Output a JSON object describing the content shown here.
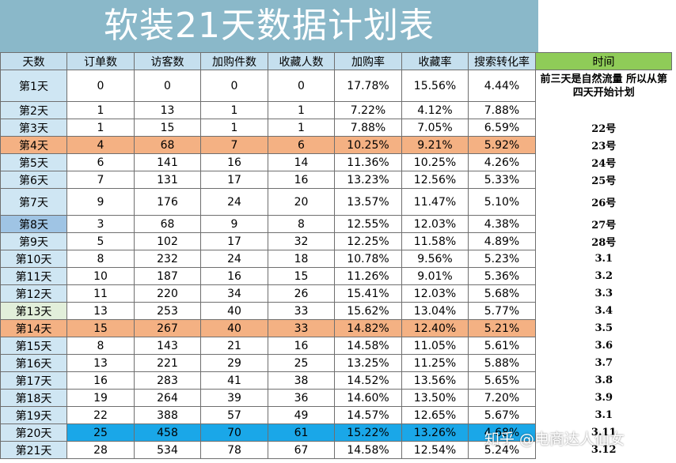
{
  "title": "软装21天数据计划表",
  "headers": [
    "天数",
    "订单数",
    "访客数",
    "加购件数",
    "收藏人数",
    "加购率",
    "收藏率",
    "搜索转化率",
    "时间"
  ],
  "rows": [
    {
      "day": "第1天",
      "orders": "0",
      "visitors": "0",
      "cart": "0",
      "fav": "0",
      "cart_rate": "17.78%",
      "fav_rate": "15.56%",
      "conv": "4.44%",
      "time": "前三天是自然流量 所以从第四天开始计划"
    },
    {
      "day": "第2天",
      "orders": "1",
      "visitors": "13",
      "cart": "1",
      "fav": "1",
      "cart_rate": "7.22%",
      "fav_rate": "4.12%",
      "conv": "7.88%",
      "time": ""
    },
    {
      "day": "第3天",
      "orders": "1",
      "visitors": "15",
      "cart": "1",
      "fav": "1",
      "cart_rate": "7.88%",
      "fav_rate": "7.05%",
      "conv": "6.59%",
      "time": "22号"
    },
    {
      "day": "第4天",
      "orders": "4",
      "visitors": "68",
      "cart": "7",
      "fav": "6",
      "cart_rate": "10.25%",
      "fav_rate": "9.21%",
      "conv": "5.92%",
      "time": "23号"
    },
    {
      "day": "第5天",
      "orders": "6",
      "visitors": "141",
      "cart": "16",
      "fav": "14",
      "cart_rate": "11.36%",
      "fav_rate": "10.25%",
      "conv": "4.26%",
      "time": "24号"
    },
    {
      "day": "第6天",
      "orders": "7",
      "visitors": "131",
      "cart": "17",
      "fav": "16",
      "cart_rate": "13.23%",
      "fav_rate": "12.56%",
      "conv": "5.33%",
      "time": "25号"
    },
    {
      "day": "第7天",
      "orders": "9",
      "visitors": "176",
      "cart": "24",
      "fav": "20",
      "cart_rate": "13.57%",
      "fav_rate": "11.47%",
      "conv": "5.10%",
      "time": "26号"
    },
    {
      "day": "第8天",
      "orders": "3",
      "visitors": "68",
      "cart": "9",
      "fav": "8",
      "cart_rate": "12.55%",
      "fav_rate": "12.03%",
      "conv": "4.38%",
      "time": "27号"
    },
    {
      "day": "第9天",
      "orders": "5",
      "visitors": "102",
      "cart": "17",
      "fav": "32",
      "cart_rate": "12.25%",
      "fav_rate": "11.58%",
      "conv": "4.89%",
      "time": "28号"
    },
    {
      "day": "第10天",
      "orders": "8",
      "visitors": "232",
      "cart": "24",
      "fav": "18",
      "cart_rate": "10.78%",
      "fav_rate": "9.56%",
      "conv": "5.23%",
      "time": "3.1"
    },
    {
      "day": "第11天",
      "orders": "10",
      "visitors": "187",
      "cart": "16",
      "fav": "15",
      "cart_rate": "11.26%",
      "fav_rate": "9.01%",
      "conv": "5.36%",
      "time": "3.2"
    },
    {
      "day": "第12天",
      "orders": "11",
      "visitors": "220",
      "cart": "34",
      "fav": "26",
      "cart_rate": "15.41%",
      "fav_rate": "12.03%",
      "conv": "5.68%",
      "time": "3.3"
    },
    {
      "day": "第13天",
      "orders": "13",
      "visitors": "253",
      "cart": "40",
      "fav": "33",
      "cart_rate": "15.62%",
      "fav_rate": "13.04%",
      "conv": "5.77%",
      "time": "3.4"
    },
    {
      "day": "第14天",
      "orders": "15",
      "visitors": "267",
      "cart": "40",
      "fav": "33",
      "cart_rate": "14.82%",
      "fav_rate": "12.40%",
      "conv": "5.21%",
      "time": "3.5"
    },
    {
      "day": "第15天",
      "orders": "8",
      "visitors": "143",
      "cart": "21",
      "fav": "16",
      "cart_rate": "14.58%",
      "fav_rate": "11.05%",
      "conv": "5.61%",
      "time": "3.6"
    },
    {
      "day": "第16天",
      "orders": "13",
      "visitors": "221",
      "cart": "29",
      "fav": "25",
      "cart_rate": "13.25%",
      "fav_rate": "11.25%",
      "conv": "5.88%",
      "time": "3.7"
    },
    {
      "day": "第17天",
      "orders": "16",
      "visitors": "283",
      "cart": "41",
      "fav": "38",
      "cart_rate": "14.52%",
      "fav_rate": "13.56%",
      "conv": "5.65%",
      "time": "3.8"
    },
    {
      "day": "第18天",
      "orders": "19",
      "visitors": "264",
      "cart": "39",
      "fav": "36",
      "cart_rate": "14.60%",
      "fav_rate": "13.50%",
      "conv": "7.20%",
      "time": "3.9"
    },
    {
      "day": "第19天",
      "orders": "22",
      "visitors": "388",
      "cart": "57",
      "fav": "49",
      "cart_rate": "14.57%",
      "fav_rate": "12.65%",
      "conv": "5.67%",
      "time": "3.1"
    },
    {
      "day": "第20天",
      "orders": "25",
      "visitors": "458",
      "cart": "70",
      "fav": "61",
      "cart_rate": "15.22%",
      "fav_rate": "13.26%",
      "conv": "4.68%",
      "time": "3.11"
    },
    {
      "day": "第21天",
      "orders": "28",
      "visitors": "534",
      "cart": "78",
      "fav": "67",
      "cart_rate": "14.58%",
      "fav_rate": "12.54%",
      "conv": "5.24%",
      "time": "3.12"
    }
  ],
  "highlight_colors": {
    "orange": "#f4b183",
    "blue": "#1aa7e8",
    "header_green": "#8fcc58",
    "title_band": "#8ab8c9"
  },
  "watermark": "知乎 @电商达人仙女"
}
